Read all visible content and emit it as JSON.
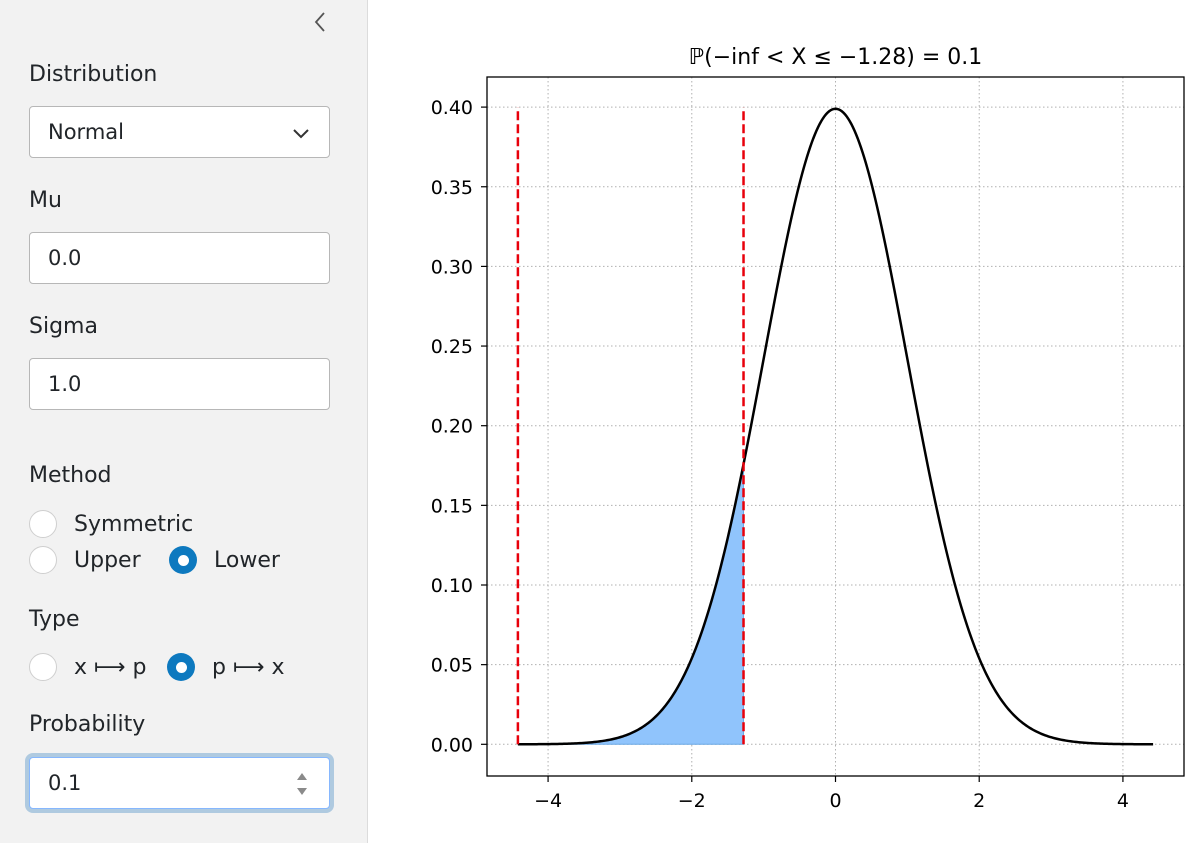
{
  "sidebar": {
    "collapse_icon": "chevron-left-icon",
    "distribution": {
      "label": "Distribution",
      "value": "Normal",
      "icon": "chevron-down-icon"
    },
    "mu": {
      "label": "Mu",
      "value": "0.0"
    },
    "sigma": {
      "label": "Sigma",
      "value": "1.0"
    },
    "method": {
      "label": "Method",
      "options": [
        "Symmetric",
        "Upper",
        "Lower"
      ],
      "selected": "Lower"
    },
    "type": {
      "label": "Type",
      "options": [
        "x ⟼ p",
        "p ⟼ x"
      ],
      "selected": "p ⟼ x"
    },
    "probability": {
      "label": "Probability",
      "value": "0.1"
    }
  },
  "colors": {
    "radio_checked": "#0d79bf",
    "fill": "#90c4fc",
    "fill_edge": "#6aa8e6",
    "vline": "#e8000b",
    "curve": "#000000"
  },
  "chart_data": {
    "type": "line",
    "title": "ℙ(−inf < X ≤ −1.28) = 0.1",
    "xlim": [
      -4.85,
      4.85
    ],
    "ylim": [
      -0.0199,
      0.4189
    ],
    "xticks": [
      -4,
      -2,
      0,
      2,
      4
    ],
    "xtick_labels": [
      "−4",
      "−2",
      "0",
      "2",
      "4"
    ],
    "yticks": [
      0.0,
      0.05,
      0.1,
      0.15,
      0.2,
      0.25,
      0.3,
      0.35,
      0.4
    ],
    "ytick_labels": [
      "0.00",
      "0.05",
      "0.10",
      "0.15",
      "0.20",
      "0.25",
      "0.30",
      "0.35",
      "0.40"
    ],
    "grid": true,
    "series": [
      {
        "kind": "normal_pdf",
        "mu": 0.0,
        "sigma": 1.0,
        "x_range": [
          -4.42,
          4.42
        ]
      }
    ],
    "shaded_region": {
      "x_from": -4.42,
      "x_to": -1.28
    },
    "vlines": [
      {
        "x": -4.42,
        "y_max": 0.4,
        "style": "dashed"
      },
      {
        "x": -1.28,
        "y_max": 0.4,
        "style": "dashed"
      }
    ]
  }
}
